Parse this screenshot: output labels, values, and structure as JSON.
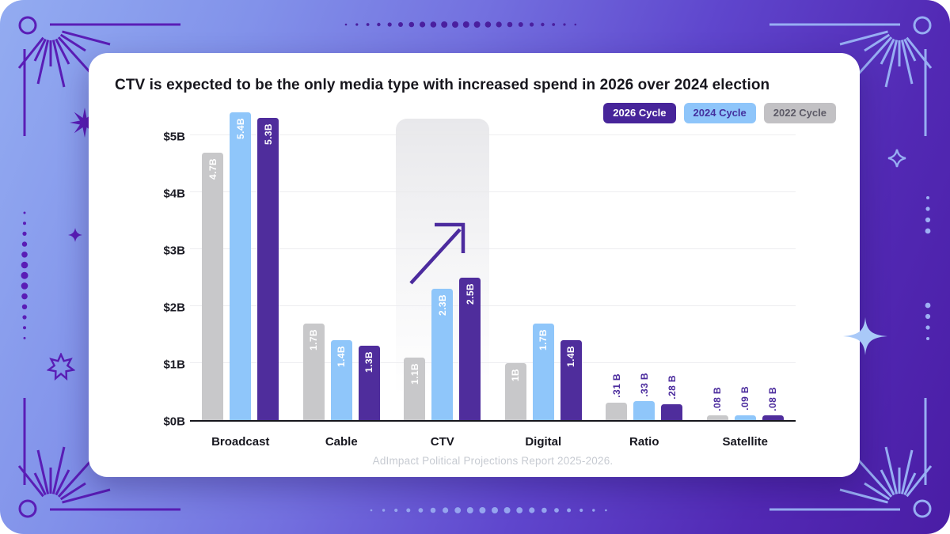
{
  "header": {
    "title": "CTV is expected to be the only media type with increased spend in 2026 over 2024 election"
  },
  "legend": [
    {
      "label": "2026 Cycle",
      "bg": "#47259a",
      "text": "#ffffff"
    },
    {
      "label": "2024 Cycle",
      "bg": "#8ec5fa",
      "text": "#44309e"
    },
    {
      "label": "2022 Cycle",
      "bg": "#c2c1c4",
      "text": "#5c5a66"
    }
  ],
  "source": "AdImpact Political Projections Report 2025-2026.",
  "chart_data": {
    "type": "bar",
    "title": "CTV is expected to be the only media type with increased spend in 2026 over 2024 election",
    "categories": [
      "Broadcast",
      "Cable",
      "CTV",
      "Digital",
      "Ratio",
      "Satellite"
    ],
    "y_ticks": [
      "$0B",
      "$1B",
      "$2B",
      "$3B",
      "$4B",
      "$5B"
    ],
    "ylim": [
      0,
      5.5
    ],
    "grid": true,
    "legend_position": "top-right",
    "series": [
      {
        "name": "2022 Cycle",
        "color": "#c8c8ca",
        "values": [
          4.7,
          1.7,
          1.1,
          1.0,
          0.31,
          0.08
        ],
        "labels": [
          "4.7B",
          "1.7B",
          "1.1B",
          "1B",
          ".31 B",
          ".08 B"
        ]
      },
      {
        "name": "2024 Cycle",
        "color": "#8fc6fa",
        "values": [
          5.4,
          1.4,
          2.3,
          1.7,
          0.33,
          0.09
        ],
        "labels": [
          "5.4B",
          "1.4B",
          "2.3B",
          "1.7B",
          ".33 B",
          ".09 B"
        ]
      },
      {
        "name": "2026 Cycle",
        "color": "#4f2d9c",
        "values": [
          5.3,
          1.3,
          2.5,
          1.4,
          0.28,
          0.08
        ],
        "labels": [
          "5.3B",
          "1.3B",
          "2.5B",
          "1.4B",
          ".28 B",
          ".08 B"
        ]
      }
    ],
    "highlight": {
      "category": "CTV",
      "annotation": "up-right-arrow"
    },
    "source": "AdImpact Political Projections Report 2025-2026."
  },
  "colors": {
    "accent_purple": "#4f2d9c",
    "accent_blue": "#8fc6fa",
    "accent_gray": "#c8c8ca",
    "axis": "#16161c",
    "deco_purple": "#5a1db6",
    "deco_periwinkle": "#97aef3",
    "sparkle_blue": "#a9c9f8"
  }
}
